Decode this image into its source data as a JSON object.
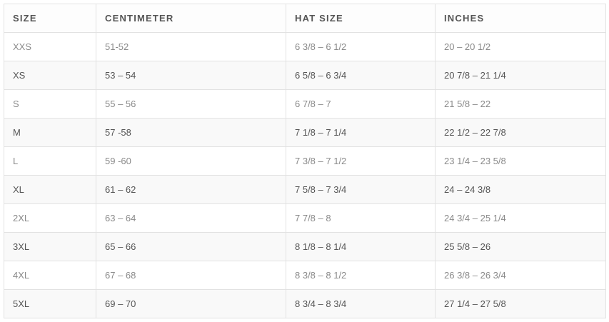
{
  "table": {
    "headers": [
      "SIZE",
      "CENTIMETER",
      "HAT SIZE",
      "INCHES"
    ],
    "rows": [
      [
        "XXS",
        "51-52",
        "6 3/8 – 6 1/2",
        "20 – 20 1/2"
      ],
      [
        "XS",
        "53 – 54",
        "6 5/8 – 6 3/4",
        "20 7/8 – 21 1/4"
      ],
      [
        "S",
        "55 – 56",
        "6 7/8 – 7",
        "21 5/8 – 22"
      ],
      [
        "M",
        "57 -58",
        "7 1/8 – 7 1/4",
        "22 1/2 – 22 7/8"
      ],
      [
        "L",
        "59 -60",
        "7 3/8 – 7 1/2",
        "23 1/4 – 23 5/8"
      ],
      [
        "XL",
        "61 – 62",
        "7 5/8 – 7 3/4",
        "24 – 24 3/8"
      ],
      [
        "2XL",
        "63 – 64",
        "7 7/8 – 8",
        "24 3/4 – 25 1/4"
      ],
      [
        "3XL",
        "65 – 66",
        "8 1/8 – 8 1/4",
        "25 5/8 – 26"
      ],
      [
        "4XL",
        "67 – 68",
        "8 3/8 – 8 1/2",
        "26 3/8 – 26 3/4"
      ],
      [
        "5XL",
        "69 – 70",
        "8 3/4 – 8 3/4",
        "27 1/4 – 27 5/8"
      ]
    ]
  }
}
